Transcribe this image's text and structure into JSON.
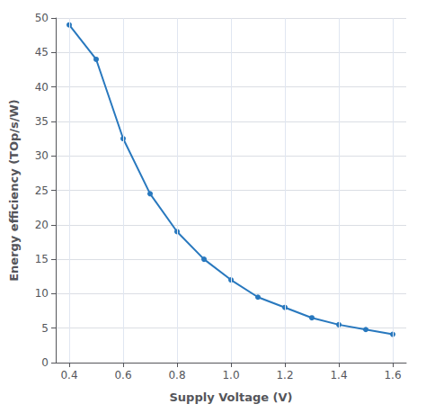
{
  "chart_data": {
    "type": "line",
    "x": [
      0.4,
      0.5,
      0.6,
      0.7,
      0.8,
      0.9,
      1.0,
      1.1,
      1.2,
      1.3,
      1.4,
      1.5,
      1.6
    ],
    "values": [
      49.0,
      44.0,
      32.5,
      24.5,
      19.0,
      15.0,
      12.0,
      9.5,
      8.0,
      6.5,
      5.5,
      4.8,
      4.1
    ],
    "color": "#2878be",
    "marker": "circle",
    "xlabel": "Supply Voltage (V)",
    "ylabel": "Energy efficiency (TOp/s/W)",
    "xlim": [
      0.35,
      1.65
    ],
    "ylim": [
      0,
      50
    ],
    "xticks": [
      0.4,
      0.6,
      0.8,
      {
        "value": 1.0,
        "label": "1.0"
      },
      1.2,
      1.4,
      1.6
    ],
    "yticks": [
      0,
      5,
      10,
      15,
      20,
      25,
      30,
      35,
      40,
      45,
      50
    ],
    "grid": true
  }
}
